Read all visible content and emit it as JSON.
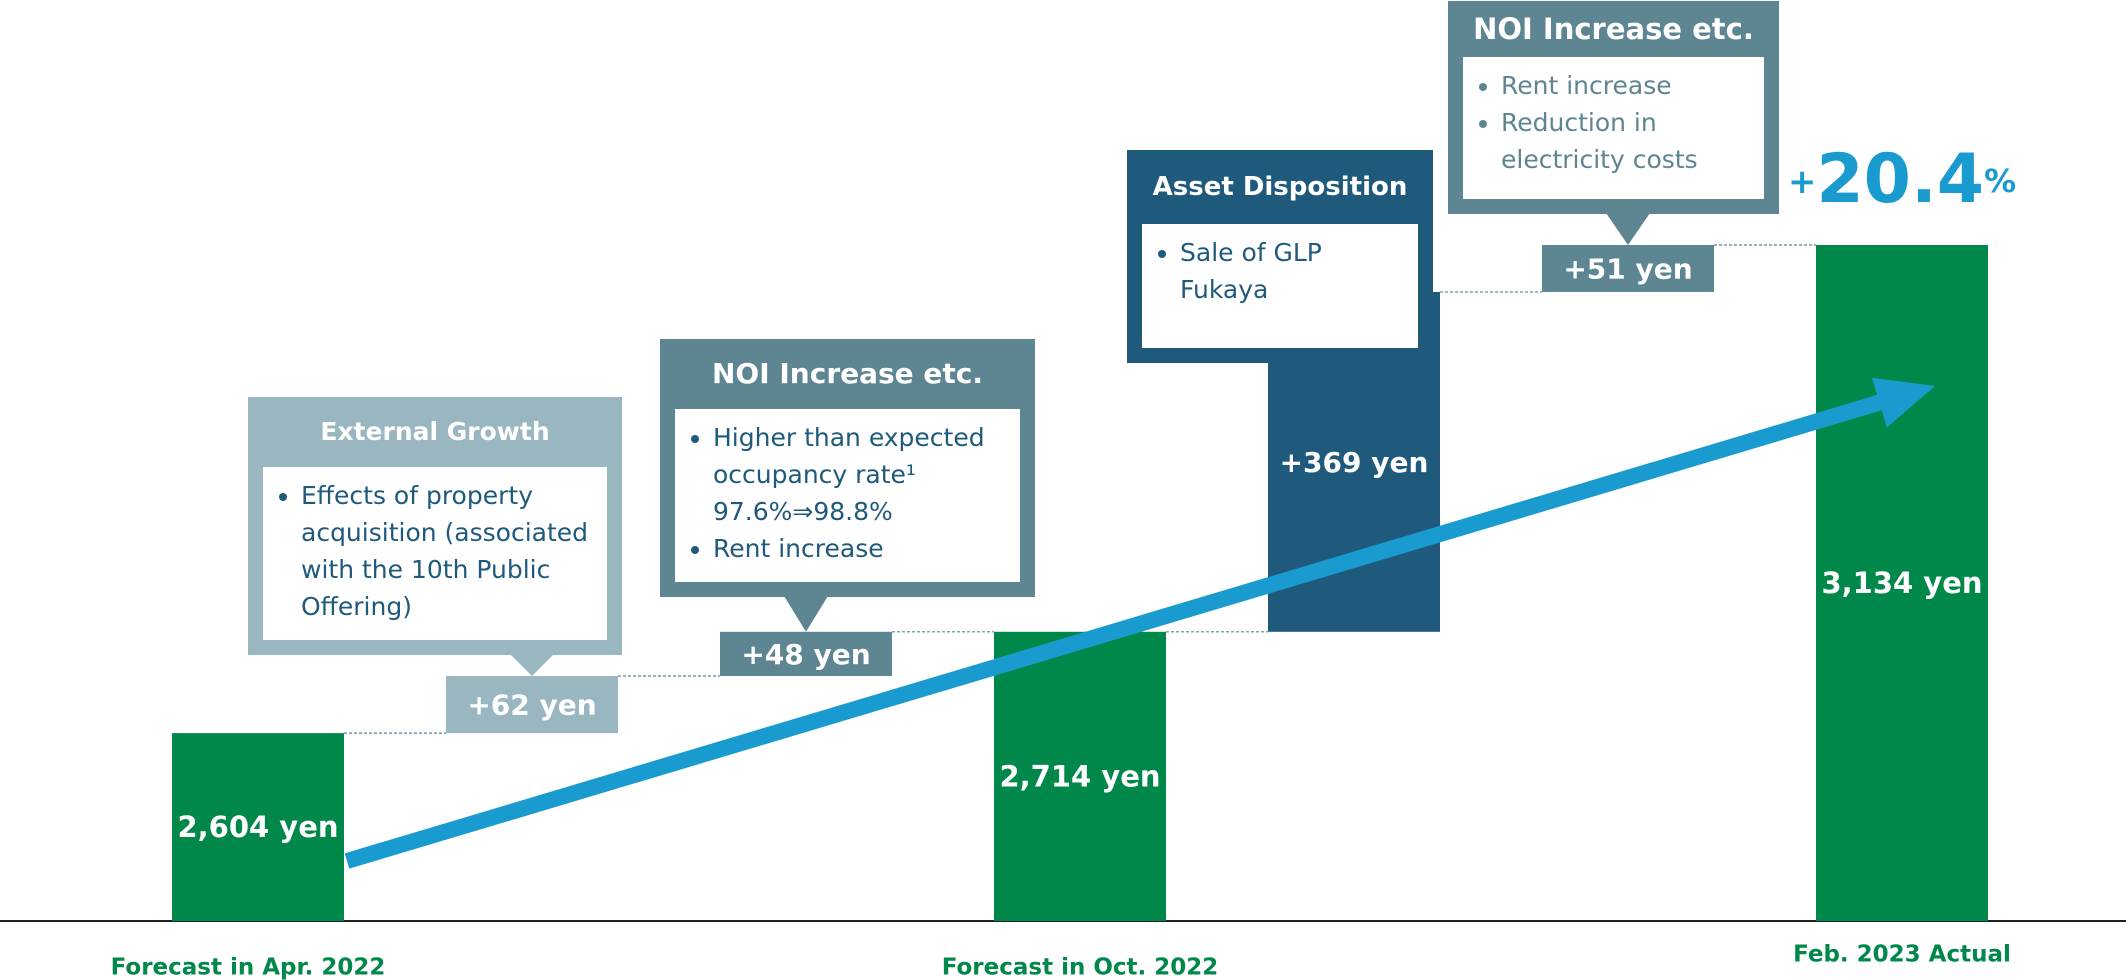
{
  "chart_data": {
    "type": "waterfall",
    "categories": [
      "Forecast in Apr. 2022",
      null,
      null,
      "Forecast in Oct. 2022",
      null,
      null,
      "Feb. 2023 Actual"
    ],
    "values": [
      2604,
      62,
      48,
      2714,
      369,
      51,
      3134
    ],
    "value_labels": [
      "2,604 yen",
      "+62 yen",
      "+48 yen",
      "2,714 yen",
      "+369 yen",
      "+51 yen",
      "3,134 yen"
    ],
    "totals": [
      true,
      false,
      false,
      true,
      false,
      false,
      true
    ],
    "colors": [
      "#00884a",
      "#9ab7c1",
      "#5e8592",
      "#00884a",
      "#1f5a7d",
      "#5e8592",
      "#00884a"
    ],
    "ylim": [
      2400,
      3400
    ],
    "annotation": "+20.4%",
    "callouts": [
      {
        "title": "External Growth",
        "bullets": [
          "Effects of property acquisition (associated with the 10th Public Offering)"
        ]
      },
      {
        "title": "NOI Increase etc.",
        "bullets": [
          "Higher than expected occupancy rate¹ 97.6%⇒98.8%",
          "Rent increase"
        ]
      },
      {
        "title": "Asset Disposition",
        "bullets": [
          "Sale of GLP Fukaya"
        ]
      },
      {
        "title": "NOI Increase etc.",
        "bullets": [
          "Rent increase",
          "Reduction in electricity costs"
        ]
      }
    ]
  }
}
